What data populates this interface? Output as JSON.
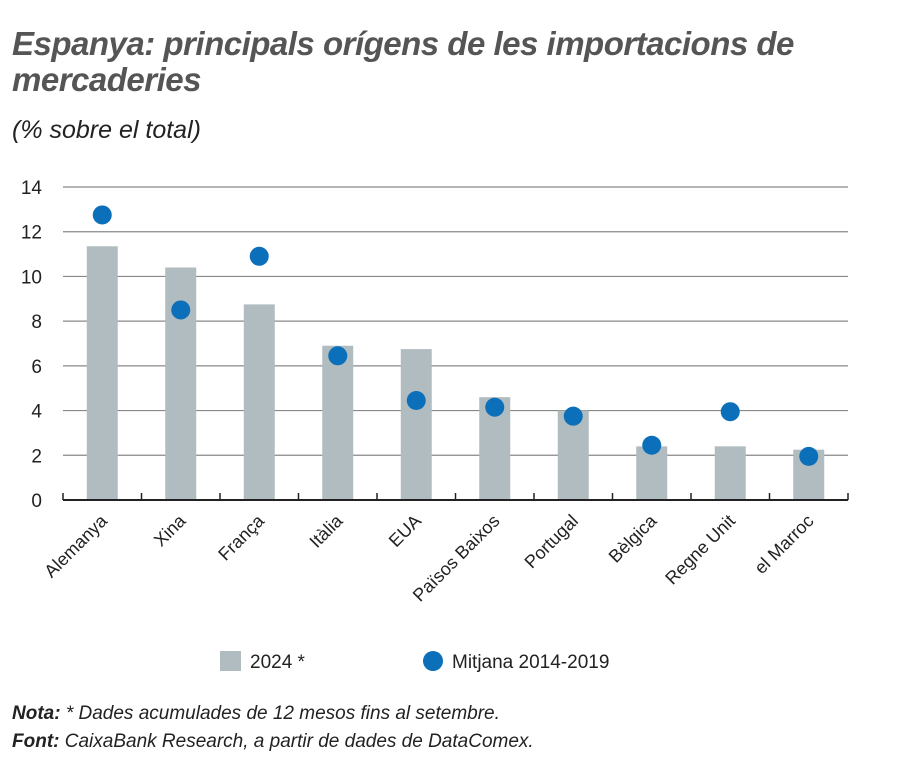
{
  "title": "Espanya: principals orígens de les importacions de mercaderies",
  "subtitle": "(% sobre el total)",
  "chart_data": {
    "type": "bar",
    "categories": [
      "Alemanya",
      "Xina",
      "França",
      "Itàlia",
      "EUA",
      "Països Baixos",
      "Portugal",
      "Bèlgica",
      "Regne Unit",
      "el Marroc"
    ],
    "series": [
      {
        "name": "2024 *",
        "type": "bar",
        "color": "#b1bcc1",
        "values": [
          11.35,
          10.4,
          8.75,
          6.9,
          6.75,
          4.6,
          4.0,
          2.4,
          2.4,
          2.25
        ]
      },
      {
        "name": "Mitjana 2014-2019",
        "type": "scatter",
        "color": "#0b6fba",
        "values": [
          12.75,
          8.5,
          10.9,
          6.45,
          4.45,
          4.15,
          3.75,
          2.45,
          3.95,
          1.95
        ]
      }
    ],
    "ylim": [
      0,
      14
    ],
    "yticks": [
      "0",
      "2",
      "4",
      "6",
      "8",
      "10",
      "12",
      "14"
    ],
    "grid": true,
    "legend": "bottom"
  },
  "notes": {
    "nota_label": "Nota:",
    "nota_text": " * Dades acumulades de 12 mesos fins al setembre.",
    "font_label": "Font:",
    "font_text": " CaixaBank Research, a partir de dades de DataComex."
  }
}
